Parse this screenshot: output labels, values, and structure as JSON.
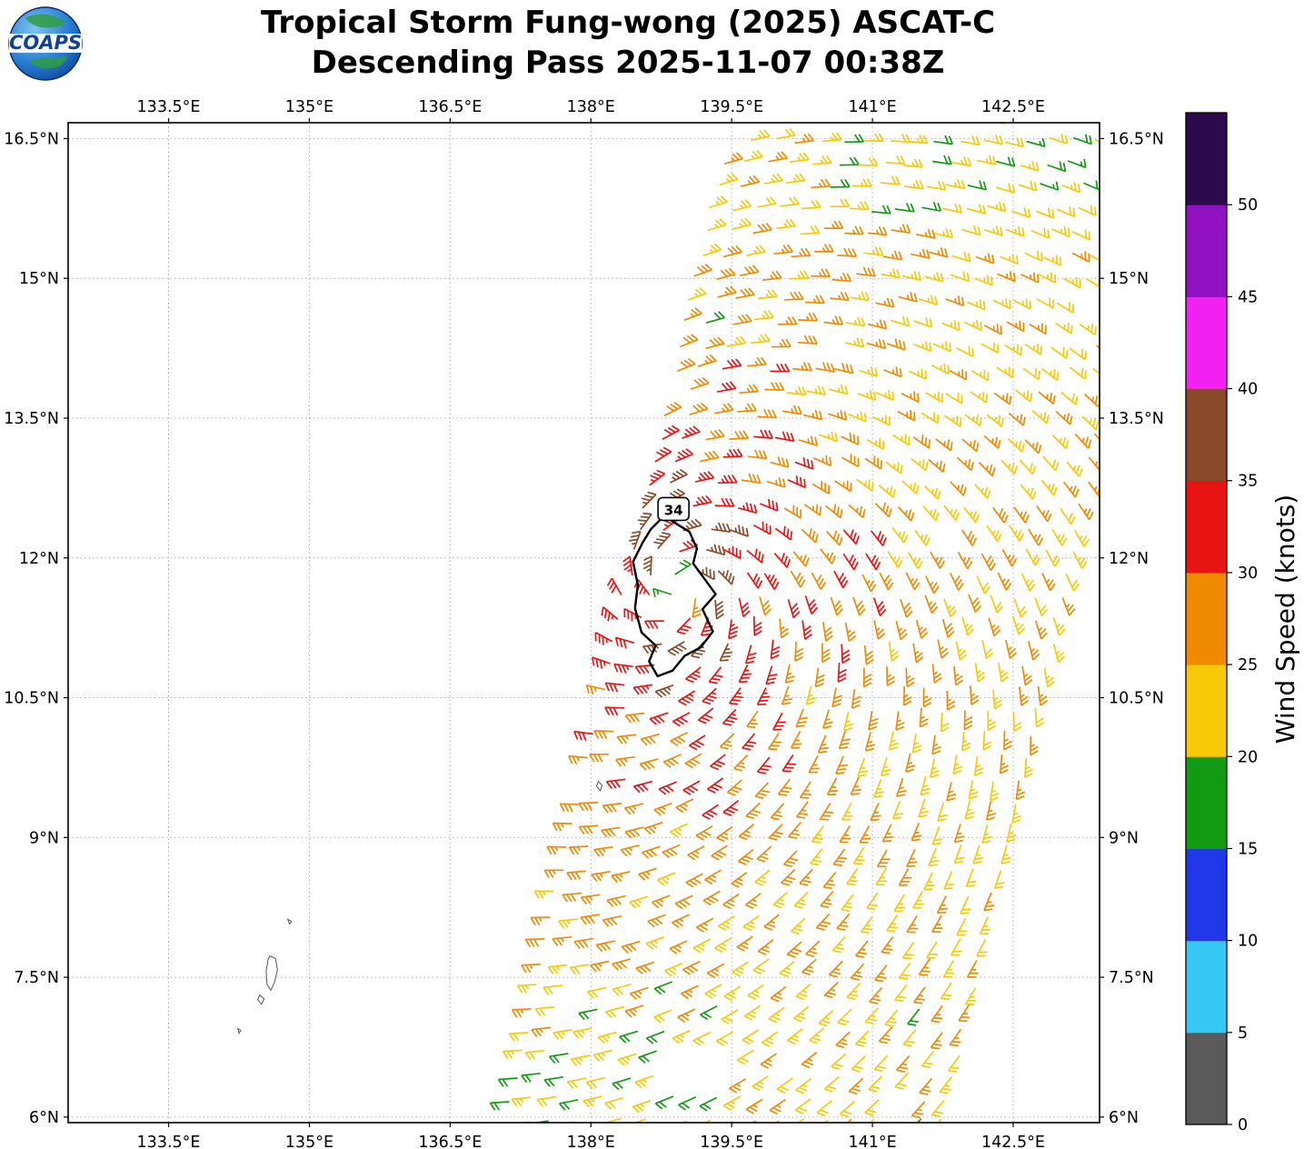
{
  "header": {
    "logo_text": "COAPS",
    "title_line1": "Tropical Storm Fung-wong (2025) ASCAT-C",
    "title_line2": "Descending Pass 2025-11-07 00:38Z"
  },
  "chart_data": {
    "type": "scatter",
    "subtype": "ascat-wind-barb-map",
    "title": "Tropical Storm Fung-wong (2025) ASCAT-C",
    "subtitle": "Descending Pass 2025-11-07 00:38Z",
    "satellite": "ASCAT-C",
    "pass_type": "Descending",
    "pass_time": "2025-11-07 00:38Z",
    "x_axis": {
      "unit": "°E",
      "range": [
        132.43,
        143.42
      ],
      "ticks": [
        133.5,
        135.0,
        136.5,
        138.0,
        139.5,
        141.0,
        142.5
      ],
      "tick_labels": [
        "133.5°E",
        "135°E",
        "136.5°E",
        "138°E",
        "139.5°E",
        "141°E",
        "142.5°E"
      ]
    },
    "y_axis": {
      "unit": "°N",
      "range": [
        5.94,
        16.67
      ],
      "ticks": [
        6.0,
        7.5,
        9.0,
        10.5,
        12.0,
        13.5,
        15.0,
        16.5
      ],
      "tick_labels": [
        "6°N",
        "7.5°N",
        "9°N",
        "10.5°N",
        "12°N",
        "13.5°N",
        "15°N",
        "16.5°N"
      ]
    },
    "grid": true,
    "colorbar": {
      "label": "Wind Speed (knots)",
      "tick_values": [
        0,
        5,
        10,
        15,
        20,
        25,
        30,
        35,
        40,
        45,
        50
      ],
      "value_max": 55,
      "bin_size": 5,
      "bins": [
        {
          "min": 0,
          "max": 5,
          "color": "#5a5a5a"
        },
        {
          "min": 5,
          "max": 10,
          "color": "#35c8f5"
        },
        {
          "min": 10,
          "max": 15,
          "color": "#2038e8"
        },
        {
          "min": 15,
          "max": 20,
          "color": "#129b12"
        },
        {
          "min": 20,
          "max": 25,
          "color": "#f7c908"
        },
        {
          "min": 25,
          "max": 30,
          "color": "#f08a00"
        },
        {
          "min": 30,
          "max": 35,
          "color": "#e81414"
        },
        {
          "min": 35,
          "max": 40,
          "color": "#8a4a2a"
        },
        {
          "min": 40,
          "max": 45,
          "color": "#f320f3"
        },
        {
          "min": 45,
          "max": 50,
          "color": "#9012c0"
        },
        {
          "min": 50,
          "max": 55,
          "color": "#2d0a4e"
        }
      ]
    },
    "storm": {
      "name": "Fung-wong",
      "year": "2025",
      "category": "Tropical Storm",
      "center_lon": 138.92,
      "center_lat": 11.68,
      "contour_label": "34",
      "contour_label_lon": 138.88,
      "contour_label_lat": 12.52,
      "contour_points": [
        [
          138.78,
          12.45
        ],
        [
          138.92,
          12.36
        ],
        [
          139.05,
          12.28
        ],
        [
          139.13,
          12.1
        ],
        [
          139.09,
          11.94
        ],
        [
          139.2,
          11.79
        ],
        [
          139.33,
          11.61
        ],
        [
          139.19,
          11.45
        ],
        [
          139.3,
          11.21
        ],
        [
          139.17,
          11.04
        ],
        [
          139.0,
          10.95
        ],
        [
          138.87,
          10.79
        ],
        [
          138.71,
          10.73
        ],
        [
          138.62,
          10.89
        ],
        [
          138.69,
          11.06
        ],
        [
          138.54,
          11.2
        ],
        [
          138.47,
          11.46
        ],
        [
          138.5,
          11.71
        ],
        [
          138.45,
          11.96
        ],
        [
          138.55,
          12.16
        ],
        [
          138.64,
          12.31
        ]
      ]
    },
    "swath": {
      "left_edge_lon_at_lat6": 137.0,
      "left_edge_slope_deg_per_deg": 0.225,
      "width_deg": 4.95,
      "grid_step_deg": 0.245,
      "lat_min": 5.95,
      "lat_max": 16.73
    },
    "wind_model": {
      "vmax_kt": 37.5,
      "rmax_deg": 0.35,
      "decay_exponent": 0.185,
      "inflow_angle_deg": 22,
      "ns_elongation": 1.4,
      "noise_kt": 3.4
    },
    "anomalies": [
      {
        "lon": 137.85,
        "lat": 10.35,
        "rx": 0.22,
        "ry": 0.28,
        "v": 18
      },
      {
        "lon": 139.3,
        "lat": 14.6,
        "rx": 0.12,
        "ry": 0.12,
        "v": 18
      },
      {
        "lon": 141.6,
        "lat": 7.25,
        "rx": 0.15,
        "ry": 0.15,
        "v": 18
      },
      {
        "lon": 140.82,
        "lat": 12.2,
        "rx": 0.2,
        "ry": 0.35,
        "v": 31.5
      }
    ],
    "data_gaps": [
      {
        "lon": 139.2,
        "lat": 6.55,
        "rx": 0.38,
        "ry": 0.28
      },
      {
        "lon": 138.1,
        "lat": 9.55,
        "rx": 0.2,
        "ry": 0.16
      },
      {
        "lon": 137.9,
        "lat": 7.3,
        "rx": 0.22,
        "ry": 0.18
      }
    ],
    "islands": [
      {
        "name": "kayangel",
        "points": [
          [
            134.77,
            8.12
          ],
          [
            134.81,
            8.1
          ],
          [
            134.79,
            8.07
          ]
        ]
      },
      {
        "name": "babeldaob",
        "points": [
          [
            134.58,
            7.73
          ],
          [
            134.64,
            7.7
          ],
          [
            134.66,
            7.58
          ],
          [
            134.63,
            7.45
          ],
          [
            134.59,
            7.36
          ],
          [
            134.55,
            7.42
          ],
          [
            134.54,
            7.57
          ],
          [
            134.56,
            7.69
          ]
        ]
      },
      {
        "name": "koror",
        "points": [
          [
            134.47,
            7.31
          ],
          [
            134.52,
            7.27
          ],
          [
            134.49,
            7.21
          ],
          [
            134.45,
            7.26
          ]
        ]
      },
      {
        "name": "peleliu",
        "points": [
          [
            134.24,
            6.95
          ],
          [
            134.27,
            6.93
          ],
          [
            134.25,
            6.9
          ]
        ]
      },
      {
        "name": "yap",
        "points": [
          [
            138.08,
            9.6
          ],
          [
            138.12,
            9.56
          ],
          [
            138.1,
            9.5
          ],
          [
            138.06,
            9.55
          ]
        ]
      }
    ]
  }
}
